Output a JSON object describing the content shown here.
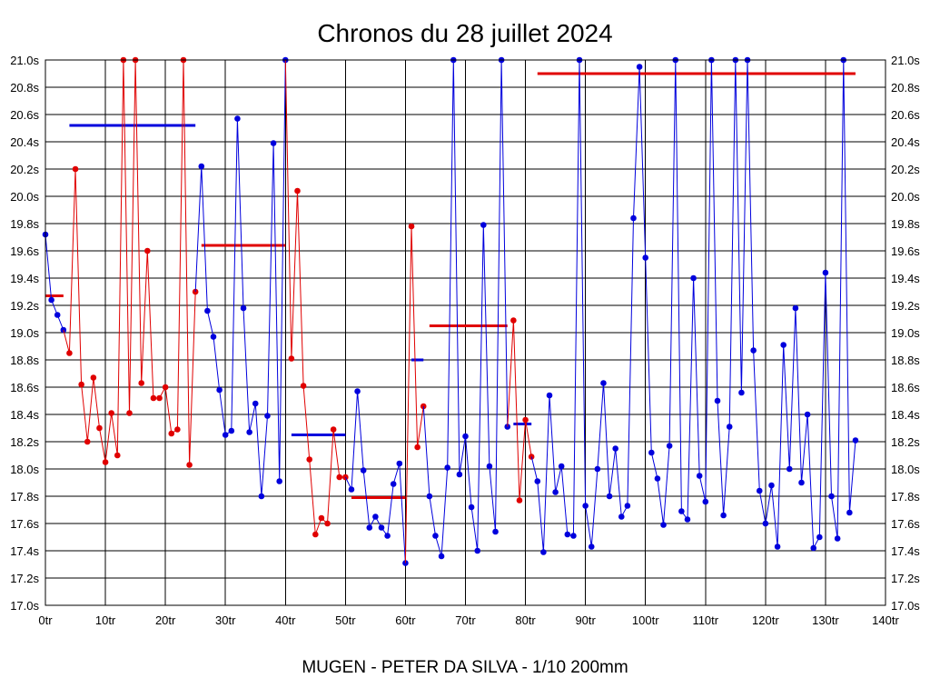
{
  "chart_data": {
    "type": "line",
    "title": "Chronos du 28 juillet 2024",
    "subtitle": "MUGEN - PETER DA SILVA - 1/10 200mm",
    "xlabel": "",
    "ylabel": "",
    "xlim": [
      0,
      140
    ],
    "ylim": [
      17.0,
      21.0
    ],
    "grid": true,
    "x_ticks": [
      "0tr",
      "10tr",
      "20tr",
      "30tr",
      "40tr",
      "50tr",
      "60tr",
      "70tr",
      "80tr",
      "90tr",
      "100tr",
      "110tr",
      "120tr",
      "130tr",
      "140tr"
    ],
    "y_ticks": [
      "17.0s",
      "17.2s",
      "17.4s",
      "17.6s",
      "17.8s",
      "18.0s",
      "18.2s",
      "18.4s",
      "18.6s",
      "18.8s",
      "19.0s",
      "19.2s",
      "19.4s",
      "19.6s",
      "19.8s",
      "20.0s",
      "20.2s",
      "20.4s",
      "20.6s",
      "20.8s",
      "21.0s"
    ],
    "colors": {
      "blue": "#0000dd",
      "red": "#e00000",
      "grid": "#000000"
    },
    "series": [
      {
        "name": "seg1",
        "color": "blue",
        "points": [
          [
            0,
            19.72
          ],
          [
            1,
            19.24
          ],
          [
            2,
            19.13
          ],
          [
            3,
            19.02
          ]
        ]
      },
      {
        "name": "seg2",
        "color": "red",
        "points": [
          [
            4,
            18.85
          ],
          [
            5,
            20.2
          ],
          [
            6,
            18.62
          ],
          [
            7,
            18.2
          ],
          [
            8,
            18.67
          ],
          [
            9,
            18.3
          ],
          [
            10,
            18.05
          ],
          [
            11,
            18.41
          ],
          [
            12,
            18.1
          ],
          [
            13,
            21.0
          ],
          [
            14,
            18.41
          ],
          [
            15,
            21.0
          ],
          [
            16,
            18.63
          ],
          [
            17,
            19.6
          ],
          [
            18,
            18.52
          ],
          [
            19,
            18.52
          ],
          [
            20,
            18.6
          ],
          [
            21,
            18.26
          ],
          [
            22,
            18.29
          ],
          [
            23,
            21.0
          ],
          [
            24,
            18.03
          ],
          [
            25,
            19.3
          ]
        ]
      },
      {
        "name": "seg3",
        "color": "blue",
        "points": [
          [
            26,
            20.22
          ],
          [
            27,
            19.16
          ],
          [
            28,
            18.97
          ],
          [
            29,
            18.58
          ],
          [
            30,
            18.25
          ],
          [
            31,
            18.28
          ],
          [
            32,
            20.57
          ],
          [
            33,
            19.18
          ],
          [
            34,
            18.27
          ],
          [
            35,
            18.48
          ],
          [
            36,
            17.8
          ],
          [
            37,
            18.39
          ],
          [
            38,
            20.39
          ],
          [
            39,
            17.91
          ],
          [
            40,
            21.0
          ]
        ]
      },
      {
        "name": "seg4",
        "color": "red",
        "points": [
          [
            41,
            18.81
          ],
          [
            42,
            20.04
          ],
          [
            43,
            18.61
          ],
          [
            44,
            18.07
          ],
          [
            45,
            17.52
          ],
          [
            46,
            17.64
          ],
          [
            47,
            17.6
          ],
          [
            48,
            18.29
          ],
          [
            49,
            17.94
          ],
          [
            50,
            17.94
          ]
        ]
      },
      {
        "name": "seg5",
        "color": "blue",
        "points": [
          [
            51,
            17.85
          ],
          [
            52,
            18.57
          ],
          [
            53,
            17.99
          ],
          [
            54,
            17.57
          ],
          [
            55,
            17.65
          ],
          [
            56,
            17.57
          ],
          [
            57,
            17.51
          ],
          [
            58,
            17.89
          ],
          [
            59,
            18.04
          ],
          [
            60,
            17.31
          ]
        ]
      },
      {
        "name": "seg6",
        "color": "red",
        "points": [
          [
            61,
            19.78
          ],
          [
            62,
            18.16
          ],
          [
            63,
            18.46
          ]
        ]
      },
      {
        "name": "seg7",
        "color": "blue",
        "points": [
          [
            64,
            17.8
          ],
          [
            65,
            17.51
          ],
          [
            66,
            17.36
          ],
          [
            67,
            18.01
          ],
          [
            68,
            21.0
          ],
          [
            69,
            17.96
          ],
          [
            70,
            18.24
          ],
          [
            71,
            17.72
          ],
          [
            72,
            17.4
          ],
          [
            73,
            19.79
          ],
          [
            74,
            18.02
          ],
          [
            75,
            17.54
          ],
          [
            76,
            21.0
          ],
          [
            77,
            18.31
          ]
        ]
      },
      {
        "name": "seg8",
        "color": "red",
        "points": [
          [
            78,
            19.09
          ],
          [
            79,
            17.77
          ],
          [
            80,
            18.36
          ],
          [
            81,
            18.09
          ]
        ]
      },
      {
        "name": "seg9",
        "color": "blue",
        "points": [
          [
            82,
            17.91
          ],
          [
            83,
            17.39
          ],
          [
            84,
            18.54
          ],
          [
            85,
            17.83
          ],
          [
            86,
            18.02
          ],
          [
            87,
            17.52
          ],
          [
            88,
            17.51
          ],
          [
            89,
            21.0
          ],
          [
            90,
            17.73
          ],
          [
            91,
            17.43
          ],
          [
            92,
            18.0
          ],
          [
            93,
            18.63
          ],
          [
            94,
            17.8
          ],
          [
            95,
            18.15
          ],
          [
            96,
            17.65
          ],
          [
            97,
            17.73
          ],
          [
            98,
            19.84
          ],
          [
            99,
            20.95
          ],
          [
            100,
            19.55
          ],
          [
            101,
            18.12
          ],
          [
            102,
            17.93
          ],
          [
            103,
            17.59
          ],
          [
            104,
            18.17
          ],
          [
            105,
            21.0
          ],
          [
            106,
            17.69
          ],
          [
            107,
            17.63
          ],
          [
            108,
            19.4
          ],
          [
            109,
            17.95
          ],
          [
            110,
            17.76
          ],
          [
            111,
            21.0
          ],
          [
            112,
            18.5
          ],
          [
            113,
            17.66
          ],
          [
            114,
            18.31
          ],
          [
            115,
            21.0
          ],
          [
            116,
            18.56
          ],
          [
            117,
            21.0
          ],
          [
            118,
            18.87
          ],
          [
            119,
            17.84
          ],
          [
            120,
            17.6
          ],
          [
            121,
            17.88
          ],
          [
            122,
            17.43
          ],
          [
            123,
            18.91
          ],
          [
            124,
            18.0
          ],
          [
            125,
            19.18
          ],
          [
            126,
            17.9
          ],
          [
            127,
            18.4
          ],
          [
            128,
            17.42
          ],
          [
            129,
            17.5
          ],
          [
            130,
            19.44
          ],
          [
            131,
            17.8
          ],
          [
            132,
            17.49
          ],
          [
            133,
            21.0
          ],
          [
            134,
            17.68
          ],
          [
            135,
            18.21
          ]
        ]
      }
    ],
    "averages": [
      {
        "color": "red",
        "x0": 0,
        "x1": 3,
        "y": 19.27
      },
      {
        "color": "blue",
        "x0": 4,
        "x1": 25,
        "y": 20.52
      },
      {
        "color": "red",
        "x0": 26,
        "x1": 40,
        "y": 19.64
      },
      {
        "color": "blue",
        "x0": 41,
        "x1": 50,
        "y": 18.25
      },
      {
        "color": "red",
        "x0": 51,
        "x1": 60,
        "y": 17.79
      },
      {
        "color": "blue",
        "x0": 61,
        "x1": 63,
        "y": 18.8
      },
      {
        "color": "red",
        "x0": 64,
        "x1": 77,
        "y": 19.05
      },
      {
        "color": "blue",
        "x0": 78,
        "x1": 81,
        "y": 18.33
      },
      {
        "color": "red",
        "x0": 82,
        "x1": 135,
        "y": 20.9
      }
    ]
  }
}
